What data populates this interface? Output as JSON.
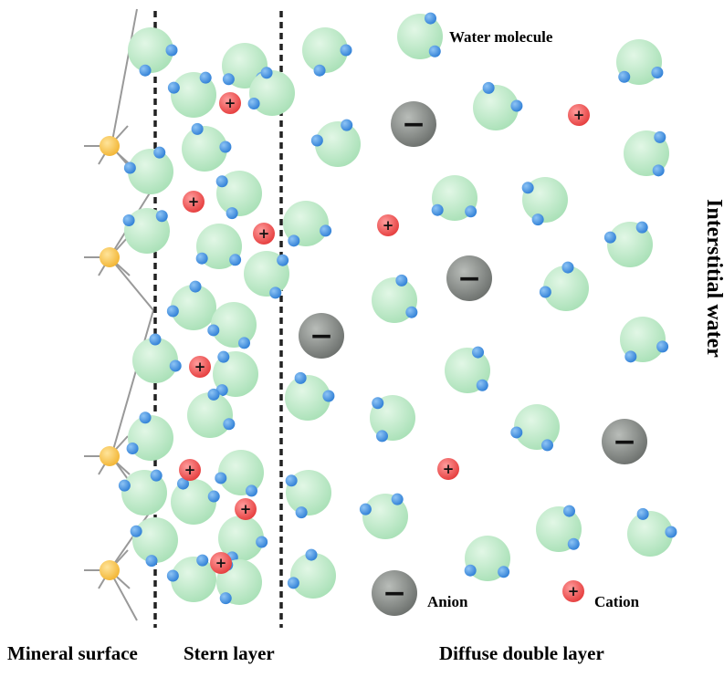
{
  "labels": {
    "water_molecule": "Water molecule",
    "interstitial_water": "Interstitial water",
    "anion": "Anion",
    "cation": "Cation",
    "mineral_surface": "Mineral surface",
    "stern_layer": "Stern layer",
    "diffuse_double_layer": "Diffuse double layer"
  },
  "symbols": {
    "anion": "−",
    "cation": "+"
  },
  "colors": {
    "water_oxygen": "#a8e0b6",
    "water_oxygen_light": "#e2f7e6",
    "hydrogen": "#2f7fd6",
    "hydrogen_light": "#8ec4f5",
    "cation": "#e53b3b",
    "cation_light": "#ff9d9d",
    "anion": "#6b6f6c",
    "anion_light": "#b9bdb9",
    "mineral_atom": "#f2b431",
    "mineral_atom_light": "#ffe49a",
    "boundary_line": "#222222",
    "surface_bonds": "#999999"
  }
}
